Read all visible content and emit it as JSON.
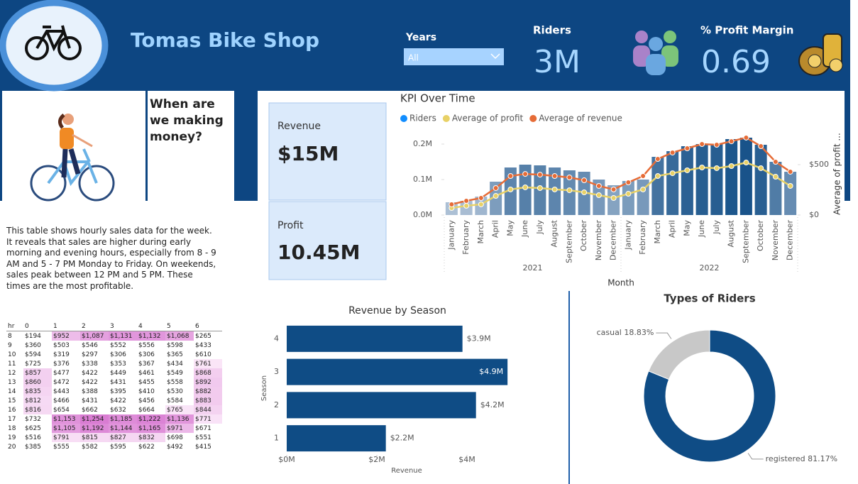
{
  "header": {
    "title": "Tomas Bike Shop",
    "slicer": {
      "label": "Years",
      "value": "All"
    },
    "kpis": [
      {
        "label": "Riders",
        "value": "3M"
      },
      {
        "label": "% Profit Margin",
        "value": "0.69"
      }
    ]
  },
  "story": {
    "heading": "When are we making money?",
    "text": "This table shows hourly sales data for the week. It reveals that sales are higher during early morning and evening hours, especially from 8 - 9 AM and 5 - 7 PM Monday to Friday. On weekends, sales peak between 12 PM and 5 PM. These times are the most profitable."
  },
  "cards": [
    {
      "label": "Revenue",
      "value": "$15M"
    },
    {
      "label": "Profit",
      "value": "10.45M"
    }
  ],
  "table": {
    "columns": [
      "hr",
      "0",
      "1",
      "2",
      "3",
      "4",
      "5",
      "6"
    ],
    "rows": [
      [
        "8",
        "$194",
        "$952",
        "$1,087",
        "$1,131",
        "$1,132",
        "$1,068",
        "$265"
      ],
      [
        "9",
        "$360",
        "$503",
        "$546",
        "$552",
        "$556",
        "$598",
        "$433"
      ],
      [
        "10",
        "$594",
        "$319",
        "$297",
        "$306",
        "$306",
        "$365",
        "$610"
      ],
      [
        "11",
        "$725",
        "$376",
        "$338",
        "$353",
        "$367",
        "$434",
        "$761"
      ],
      [
        "12",
        "$857",
        "$477",
        "$422",
        "$449",
        "$461",
        "$549",
        "$868"
      ],
      [
        "13",
        "$860",
        "$472",
        "$422",
        "$431",
        "$455",
        "$558",
        "$892"
      ],
      [
        "14",
        "$835",
        "$443",
        "$388",
        "$395",
        "$410",
        "$530",
        "$882"
      ],
      [
        "15",
        "$812",
        "$466",
        "$431",
        "$422",
        "$456",
        "$584",
        "$883"
      ],
      [
        "16",
        "$816",
        "$654",
        "$662",
        "$632",
        "$664",
        "$765",
        "$844"
      ],
      [
        "17",
        "$732",
        "$1,153",
        "$1,254",
        "$1,185",
        "$1,222",
        "$1,136",
        "$771"
      ],
      [
        "18",
        "$625",
        "$1,105",
        "$1,192",
        "$1,144",
        "$1,165",
        "$971",
        "$671"
      ],
      [
        "19",
        "$516",
        "$791",
        "$815",
        "$827",
        "$832",
        "$698",
        "$551"
      ],
      [
        "20",
        "$385",
        "$555",
        "$582",
        "$595",
        "$622",
        "$492",
        "$415"
      ]
    ]
  },
  "chart_data": [
    {
      "type": "combo",
      "title": "KPI Over Time",
      "categories": [
        "January",
        "February",
        "March",
        "April",
        "May",
        "June",
        "July",
        "August",
        "September",
        "October",
        "November",
        "December",
        "January",
        "February",
        "March",
        "April",
        "May",
        "June",
        "July",
        "August",
        "September",
        "October",
        "November",
        "December"
      ],
      "x_groups": [
        "2021",
        "2022"
      ],
      "xlabel": "Month",
      "y2label": "Average of profit ...",
      "ylim": [
        0,
        230000
      ],
      "yticks": [
        {
          "value": 0,
          "label": "0.0M"
        },
        {
          "value": 100000,
          "label": "0.1M"
        },
        {
          "value": 200000,
          "label": "0.2M"
        }
      ],
      "y2lim": [
        0,
        810
      ],
      "y2ticks": [
        {
          "value": 0,
          "label": "$0"
        },
        {
          "value": 500,
          "label": "$500"
        }
      ],
      "series": [
        {
          "name": "Riders",
          "type": "bar",
          "color": "#118DFF",
          "color_scale": [
            "#c9d5e4",
            "#0f4c85"
          ],
          "values": [
            36000,
            40000,
            52000,
            94000,
            134000,
            142000,
            140000,
            134000,
            126000,
            122000,
            100000,
            84000,
            96000,
            100000,
            164000,
            180000,
            194000,
            200000,
            200000,
            214000,
            218000,
            198000,
            150000,
            122000
          ]
        },
        {
          "name": "Average of profit",
          "type": "line",
          "axis": "y2",
          "color": "#E8D166",
          "values": [
            70,
            92,
            106,
            190,
            254,
            275,
            268,
            254,
            246,
            225,
            197,
            169,
            211,
            254,
            387,
            415,
            444,
            472,
            465,
            486,
            521,
            465,
            380,
            289
          ]
        },
        {
          "name": "Average of revenue",
          "type": "line",
          "axis": "y2",
          "color": "#E66C37",
          "values": [
            106,
            141,
            169,
            268,
            387,
            408,
            401,
            387,
            373,
            345,
            289,
            254,
            324,
            387,
            556,
            620,
            662,
            704,
            697,
            732,
            768,
            683,
            528,
            430
          ]
        }
      ]
    },
    {
      "type": "hbar",
      "title": "Revenue by Season",
      "xlabel": "Revenue",
      "ylabel": "Season",
      "categories": [
        "4",
        "3",
        "2",
        "1"
      ],
      "values": [
        3900000,
        4900000,
        4200000,
        2200000
      ],
      "value_labels": [
        "$3.9M",
        "$4.9M",
        "$4.2M",
        "$2.2M"
      ],
      "color": "#0f4c85",
      "xlim": [
        0,
        5000000
      ],
      "xticks": [
        {
          "value": 0,
          "label": "$0M"
        },
        {
          "value": 2000000,
          "label": "$2M"
        },
        {
          "value": 4000000,
          "label": "$4M"
        }
      ]
    },
    {
      "type": "donut",
      "title": "Types of Riders",
      "categories": [
        "registered",
        "casual"
      ],
      "values": [
        81.17,
        18.83
      ],
      "value_labels": [
        "81.17%",
        "18.83%"
      ],
      "colors": [
        "#0f4c85",
        "#c8c8c8"
      ]
    }
  ]
}
